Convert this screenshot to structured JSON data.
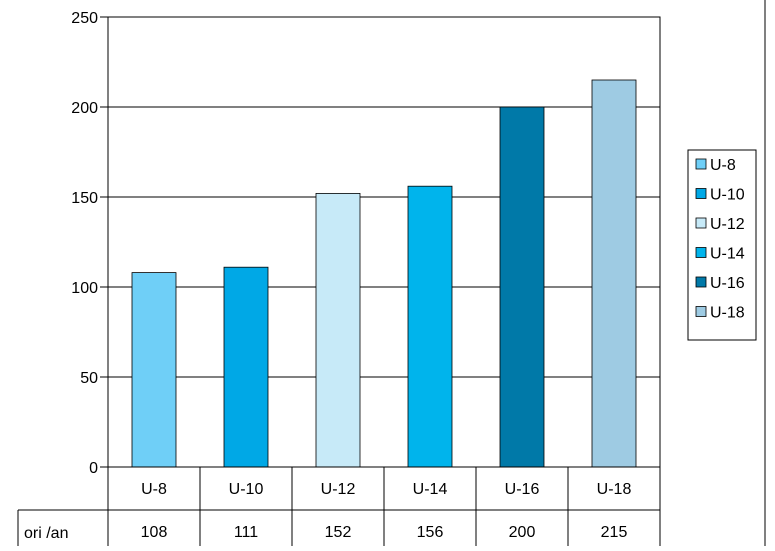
{
  "chart_data": {
    "type": "bar",
    "title": "",
    "xlabel": "",
    "ylabel": "",
    "categories": [
      "U-8",
      "U-10",
      "U-12",
      "U-14",
      "U-16",
      "U-18"
    ],
    "values": [
      108,
      111,
      152,
      156,
      200,
      215
    ],
    "ylim": [
      0,
      250
    ],
    "yticks": [
      "0",
      "50",
      "100",
      "150",
      "200",
      "250"
    ],
    "grid": true,
    "legend_position": "right",
    "data_table": {
      "row_label": "ori /an",
      "values": [
        "108",
        "111",
        "152",
        "156",
        "200",
        "215"
      ]
    },
    "series": [
      {
        "name": "U-8",
        "color": "#6fcff7"
      },
      {
        "name": "U-10",
        "color": "#00a8e6"
      },
      {
        "name": "U-12",
        "color": "#c7eaf8"
      },
      {
        "name": "U-14",
        "color": "#00b4ec"
      },
      {
        "name": "U-16",
        "color": "#0079a8"
      },
      {
        "name": "U-18",
        "color": "#9ecbe3"
      }
    ]
  }
}
